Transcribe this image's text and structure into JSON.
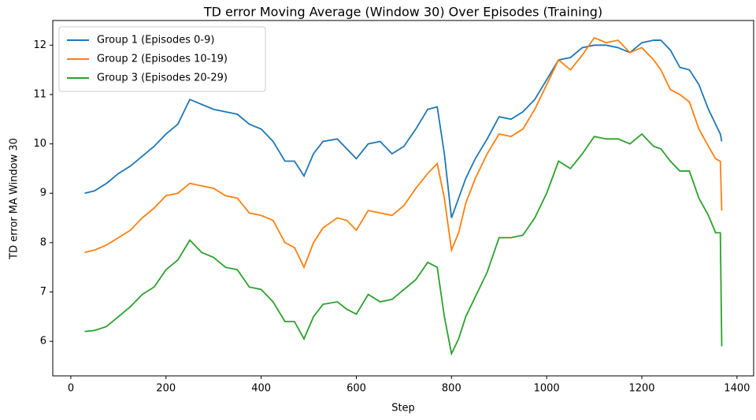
{
  "chart_data": {
    "type": "line",
    "title": "TD error Moving Average (Window 30) Over Episodes (Training)",
    "xlabel": "Step",
    "ylabel": "TD error  MA Window 30",
    "x": [
      29,
      50,
      75,
      100,
      125,
      150,
      175,
      200,
      225,
      250,
      275,
      300,
      325,
      350,
      375,
      400,
      425,
      450,
      470,
      490,
      510,
      530,
      560,
      580,
      600,
      625,
      650,
      675,
      700,
      725,
      750,
      770,
      785,
      800,
      815,
      830,
      850,
      875,
      900,
      925,
      950,
      975,
      1000,
      1025,
      1050,
      1075,
      1100,
      1125,
      1150,
      1175,
      1200,
      1225,
      1240,
      1260,
      1280,
      1300,
      1320,
      1340,
      1355,
      1365,
      1368
    ],
    "series": [
      {
        "name": "Group 1 (Episodes 0-9)",
        "color": "#1f77b4",
        "values": [
          9.0,
          9.05,
          9.2,
          9.4,
          9.55,
          9.75,
          9.95,
          10.2,
          10.4,
          10.9,
          10.8,
          10.7,
          10.65,
          10.6,
          10.4,
          10.3,
          10.05,
          9.65,
          9.65,
          9.35,
          9.8,
          10.05,
          10.1,
          9.9,
          9.7,
          10.0,
          10.05,
          9.8,
          9.95,
          10.3,
          10.7,
          10.75,
          9.8,
          8.5,
          8.9,
          9.3,
          9.7,
          10.1,
          10.55,
          10.5,
          10.65,
          10.9,
          11.3,
          11.7,
          11.75,
          11.95,
          12.0,
          12.0,
          11.95,
          11.85,
          12.05,
          12.1,
          12.1,
          11.9,
          11.55,
          11.5,
          11.2,
          10.7,
          10.4,
          10.2,
          10.05
        ]
      },
      {
        "name": "Group 2 (Episodes 10-19)",
        "color": "#ff7f0e",
        "values": [
          7.8,
          7.85,
          7.95,
          8.1,
          8.25,
          8.5,
          8.7,
          8.95,
          9.0,
          9.2,
          9.15,
          9.1,
          8.95,
          8.9,
          8.6,
          8.55,
          8.45,
          8.0,
          7.9,
          7.5,
          8.0,
          8.3,
          8.5,
          8.45,
          8.25,
          8.65,
          8.6,
          8.55,
          8.75,
          9.1,
          9.4,
          9.6,
          8.9,
          7.85,
          8.2,
          8.8,
          9.3,
          9.8,
          10.2,
          10.15,
          10.3,
          10.7,
          11.2,
          11.7,
          11.5,
          11.8,
          12.15,
          12.05,
          12.1,
          11.85,
          11.95,
          11.7,
          11.5,
          11.1,
          11.0,
          10.85,
          10.3,
          9.95,
          9.7,
          9.65,
          8.65
        ]
      },
      {
        "name": "Group 3 (Episodes 20-29)",
        "color": "#2ca02c",
        "values": [
          6.2,
          6.22,
          6.3,
          6.5,
          6.7,
          6.95,
          7.1,
          7.45,
          7.65,
          8.05,
          7.8,
          7.7,
          7.5,
          7.45,
          7.1,
          7.05,
          6.8,
          6.4,
          6.4,
          6.05,
          6.5,
          6.75,
          6.8,
          6.65,
          6.55,
          6.95,
          6.8,
          6.85,
          7.05,
          7.25,
          7.6,
          7.5,
          6.5,
          5.75,
          6.05,
          6.5,
          6.9,
          7.4,
          8.1,
          8.1,
          8.15,
          8.5,
          9.0,
          9.65,
          9.5,
          9.8,
          10.15,
          10.1,
          10.1,
          10.0,
          10.2,
          9.95,
          9.9,
          9.65,
          9.45,
          9.45,
          8.9,
          8.55,
          8.2,
          8.2,
          5.9
        ]
      }
    ],
    "xlim": [
      -38,
      1435
    ],
    "ylim": [
      5.3,
      12.5
    ],
    "xticks": [
      0,
      200,
      400,
      600,
      800,
      1000,
      1200,
      1400
    ],
    "yticks": [
      6,
      7,
      8,
      9,
      10,
      11,
      12
    ],
    "legend": "upper left",
    "grid": false
  }
}
